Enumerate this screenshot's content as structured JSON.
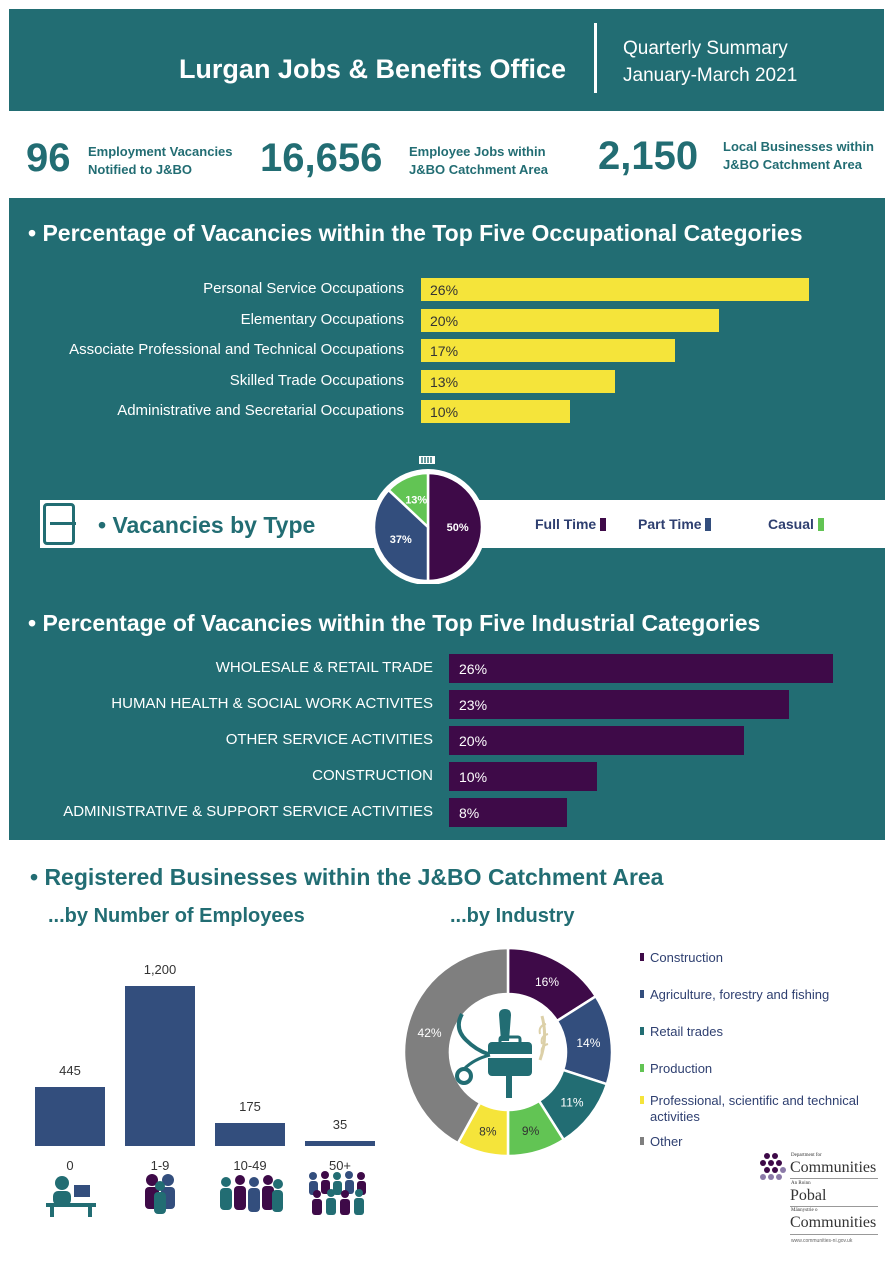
{
  "header": {
    "title": "Lurgan Jobs & Benefits Office",
    "subtitle_line1": "Quarterly Summary",
    "subtitle_line2": "January-March 2021"
  },
  "stats": [
    {
      "value": "96",
      "label_line1": "Employment Vacancies",
      "label_line2": "Notified to J&BO"
    },
    {
      "value": "16,656",
      "label_line1": "Employee Jobs within",
      "label_line2": "J&BO Catchment Area"
    },
    {
      "value": "2,150",
      "label_line1": "Local Businesses within",
      "label_line2": "J&BO Catchment Area"
    }
  ],
  "colors": {
    "teal": "#226d73",
    "yellow": "#f5e43a",
    "plum": "#3e0a48",
    "navy": "#334e7d",
    "green": "#62c454",
    "grey": "#7f7f7f"
  },
  "chart_data": [
    {
      "type": "bar",
      "orientation": "horizontal",
      "title": "• Percentage of Vacancies within the Top Five Occupational Categories",
      "categories": [
        "Personal Service Occupations",
        "Elementary Occupations",
        "Associate Professional and Technical Occupations",
        "Skilled Trade Occupations",
        "Administrative and Secretarial Occupations"
      ],
      "values": [
        26,
        20,
        17,
        13,
        10
      ],
      "value_labels": [
        "26%",
        "20%",
        "17%",
        "13%",
        "10%"
      ],
      "xlim": [
        0,
        26
      ]
    },
    {
      "type": "pie",
      "title": "• Vacancies by Type",
      "labels": [
        "Full Time",
        "Part Time",
        "Casual"
      ],
      "values": [
        50,
        37,
        13
      ],
      "value_labels": [
        "50%",
        "37%",
        "13%"
      ],
      "colors": [
        "#3e0a48",
        "#334e7d",
        "#62c454"
      ]
    },
    {
      "type": "bar",
      "orientation": "horizontal",
      "title": "• Percentage of Vacancies within the Top Five Industrial Categories",
      "categories": [
        "WHOLESALE & RETAIL TRADE",
        "HUMAN HEALTH & SOCIAL WORK ACTIVITES",
        "OTHER SERVICE ACTIVITIES",
        "CONSTRUCTION",
        "ADMINISTRATIVE & SUPPORT SERVICE ACTIVITIES"
      ],
      "values": [
        26,
        23,
        20,
        10,
        8
      ],
      "value_labels": [
        "26%",
        "23%",
        "20%",
        "10%",
        "8%"
      ],
      "xlim": [
        0,
        26
      ]
    },
    {
      "type": "bar",
      "title": "...by Number of Employees",
      "categories": [
        "0",
        "1-9",
        "10-49",
        "50+"
      ],
      "values": [
        445,
        1200,
        175,
        35
      ],
      "value_labels": [
        "445",
        "1,200",
        "175",
        "35"
      ],
      "ylim": [
        0,
        1200
      ]
    },
    {
      "type": "pie",
      "variant": "donut",
      "title": "...by Industry",
      "labels": [
        "Construction",
        "Agriculture, forestry and fishing",
        "Retail trades",
        "Production",
        "Professional, scientific and technical activities",
        "Other"
      ],
      "values": [
        16,
        14,
        11,
        9,
        8,
        42
      ],
      "value_labels": [
        "16%",
        "14%",
        "11%",
        "9%",
        "8%",
        "42%"
      ],
      "colors": [
        "#3e0a48",
        "#334e7d",
        "#226d73",
        "#62c454",
        "#f5e43a",
        "#7f7f7f"
      ]
    }
  ],
  "registered": {
    "title": "• Registered Businesses within the J&BO Catchment Area",
    "employees_title": "...by Number of Employees",
    "industry_title": "...by Industry"
  },
  "logo": {
    "dept_for": "Department for",
    "communities": "Communities",
    "an_roinn": "An Roinn",
    "pobal": "Pobal",
    "mainnystrie": "Männystrie o",
    "communities2": "Communities",
    "url": "www.communities-ni.gov.uk"
  }
}
